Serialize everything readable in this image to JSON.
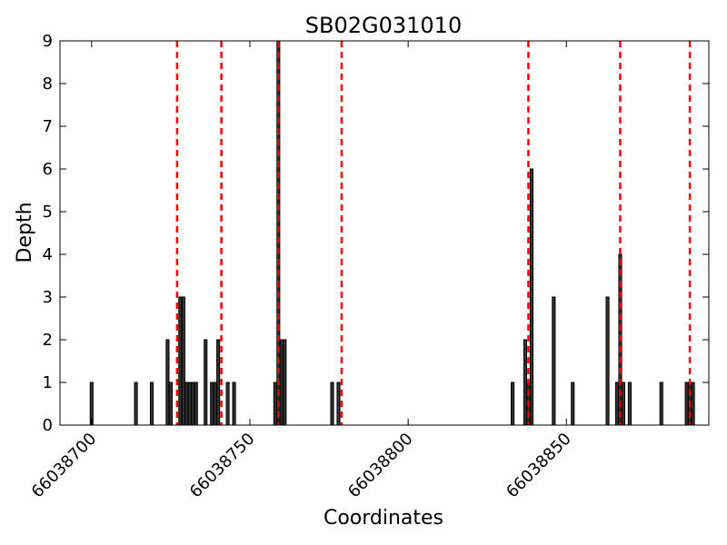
{
  "chart_data": {
    "type": "bar",
    "title": "SB02G031010",
    "xlabel": "Coordinates",
    "ylabel": "Depth",
    "xlim": [
      66038690,
      66038895
    ],
    "ylim": [
      0,
      9
    ],
    "xticks": [
      66038700,
      66038750,
      66038800,
      66038850
    ],
    "yticks": [
      0,
      1,
      2,
      3,
      4,
      5,
      6,
      7,
      8,
      9
    ],
    "grid": false,
    "legend": "none",
    "bar_color": "#333333",
    "line_color": "#ff0000",
    "bars": {
      "x": [
        66038700,
        66038714,
        66038719,
        66038724,
        66038725,
        66038728,
        66038729,
        66038730,
        66038731,
        66038732,
        66038733,
        66038736,
        66038738,
        66038739,
        66038740,
        66038743,
        66038745,
        66038758,
        66038759,
        66038760,
        66038761,
        66038776,
        66038778,
        66038833,
        66038837,
        66038838,
        66038839,
        66038846,
        66038852,
        66038863,
        66038866,
        66038867,
        66038868,
        66038870,
        66038880,
        66038888,
        66038889,
        66038890
      ],
      "values": [
        1,
        1,
        1,
        2,
        1,
        3,
        3,
        1,
        1,
        1,
        1,
        2,
        1,
        1,
        2,
        1,
        1,
        1,
        9,
        2,
        2,
        1,
        1,
        1,
        2,
        1,
        6,
        3,
        1,
        3,
        1,
        4,
        1,
        1,
        1,
        1,
        1,
        1
      ]
    },
    "dashed_lines_x": [
      66038727,
      66038741,
      66038759,
      66038779,
      66038838,
      66038867,
      66038889
    ]
  }
}
